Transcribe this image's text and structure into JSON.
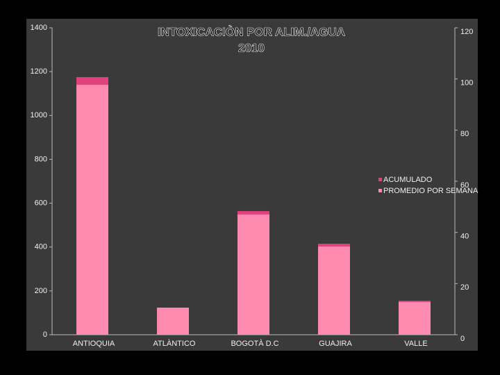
{
  "chart_data": {
    "type": "bar",
    "title": [
      "INTOXICACIÒN POR ALIM./AGUA",
      "2010"
    ],
    "categories": [
      "ANTIOQUIA",
      "ATLÀNTICO",
      "BOGOTÀ D.C",
      "GUAJIRA",
      "VALLE"
    ],
    "series": [
      {
        "name": "ACUMULADO",
        "color": "#e0407e",
        "axis": "y",
        "values": [
          1175,
          123,
          564,
          415,
          155
        ]
      },
      {
        "name": "PROMEDIO POR SEMANA",
        "color": "#ff8ab0",
        "axis": "y2",
        "values": [
          97.7,
          10.6,
          47,
          34.5,
          12.8
        ]
      }
    ],
    "ylim": [
      0,
      1400
    ],
    "yticks": [
      0,
      200,
      400,
      600,
      800,
      1000,
      1200,
      1400
    ],
    "y2lim": [
      0,
      120
    ],
    "y2ticks": [
      0,
      20,
      40,
      60,
      80,
      100,
      120
    ],
    "legend": "right"
  }
}
